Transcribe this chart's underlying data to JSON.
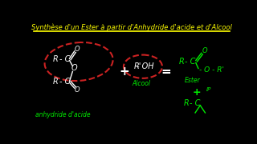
{
  "bg_color": "#000000",
  "title_text": "Synthèse d'un Ester à partir d'Anhydride d'acide et d'Alcool",
  "title_color": "#ffff00",
  "title_fontsize": 6.0,
  "separator_color": "#ffff00",
  "white_color": "#ffffff",
  "green_color": "#00ee00",
  "red_color": "#cc2222",
  "anhydride_label": "anhydride d'acide",
  "alcool_label": "Alcool",
  "ester_label": "Ester",
  "ip_label": "IP"
}
